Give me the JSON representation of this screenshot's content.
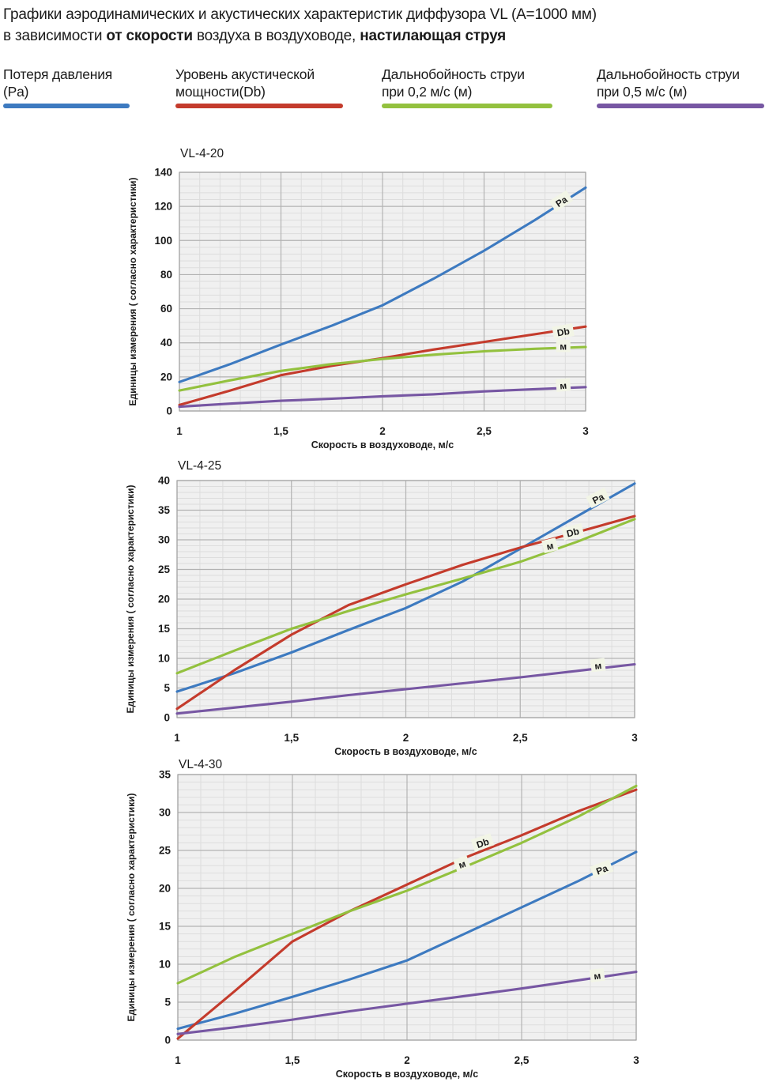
{
  "header": {
    "line1": "Графики аэродинамических и акустических характеристик  диффузора VL (А=1000 мм)",
    "line2": {
      "prefix": "в зависимости ",
      "bold1": "от скорости",
      "mid": " воздуха в воздуховоде, ",
      "bold2": "настилающая струя"
    }
  },
  "legend": {
    "items": [
      {
        "line1": "Потеря давления",
        "line2": "(Pa)",
        "color": "#3d7ac0"
      },
      {
        "line1": "Уровень акустической",
        "line2": "мощности(Db)",
        "color": "#c43b2c"
      },
      {
        "line1": "Дальнобойность струи",
        "line2": "при 0,2 м/с (м)",
        "color": "#93c13e"
      },
      {
        "line1": "Дальнобойность струи",
        "line2": "при 0,5 м/с (м)",
        "color": "#7757a3"
      }
    ]
  },
  "chart_data": [
    {
      "type": "line",
      "title": "VL-4-20",
      "xlabel": "Скорость в воздуховоде, м/с",
      "ylabel": "Единицы измерения ( согласно характеристики)",
      "xlim": [
        1,
        3
      ],
      "ylim": [
        0,
        140
      ],
      "x_major": 0.5,
      "x_minor": 0.1,
      "y_major": 20,
      "y_minor": 4,
      "xticks": [
        "1",
        "1,5",
        "2",
        "2,5",
        "3"
      ],
      "yticks": [
        0,
        20,
        40,
        60,
        80,
        100,
        120,
        140
      ],
      "x": [
        1,
        1.25,
        1.5,
        1.75,
        2,
        2.25,
        2.5,
        2.75,
        3
      ],
      "series": [
        {
          "key": "pa",
          "name": "Потеря давления (Pa)",
          "color": "#3d7ac0",
          "values": [
            17,
            27.5,
            39,
            50,
            62,
            77.5,
            94,
            112,
            131
          ],
          "label": {
            "text": "Pa",
            "x": 2.88,
            "y": 123,
            "angle": -33
          }
        },
        {
          "key": "db",
          "name": "Уровень акустической мощности(Db)",
          "color": "#c43b2c",
          "values": [
            3.5,
            12,
            21,
            26.5,
            31,
            36,
            40.5,
            45,
            49.5
          ],
          "label": {
            "text": "Db",
            "x": 2.89,
            "y": 46.5,
            "angle": -10
          }
        },
        {
          "key": "m02",
          "name": "Дальнобойность струи при 0,2 м/с (м)",
          "color": "#93c13e",
          "values": [
            12,
            18,
            23.5,
            27.5,
            30.5,
            33,
            35,
            36.5,
            37.5
          ],
          "label": {
            "text": "м",
            "x": 2.89,
            "y": 38,
            "angle": 0
          }
        },
        {
          "key": "m05",
          "name": "Дальнобойность струи при 0,5 м/с (м)",
          "color": "#7757a3",
          "values": [
            2.5,
            4.3,
            6,
            7.2,
            8.6,
            9.8,
            11.5,
            12.8,
            14
          ],
          "label": {
            "text": "м",
            "x": 2.89,
            "y": 15,
            "angle": -5
          }
        }
      ]
    },
    {
      "type": "line",
      "title": "VL-4-25",
      "xlabel": "Скорость в воздуховоде, м/с",
      "ylabel": "Единицы измерения ( согласно характеристики)",
      "xlim": [
        1,
        3
      ],
      "ylim": [
        0,
        40
      ],
      "x_major": 0.5,
      "x_minor": 0.1,
      "y_major": 5,
      "y_minor": 1,
      "xticks": [
        "1",
        "1,5",
        "2",
        "2,5",
        "3"
      ],
      "yticks": [
        0,
        5,
        10,
        15,
        20,
        25,
        30,
        35,
        40
      ],
      "x": [
        1,
        1.25,
        1.5,
        1.75,
        2,
        2.25,
        2.5,
        2.75,
        3
      ],
      "series": [
        {
          "key": "pa",
          "name": "Потеря давления (Pa)",
          "color": "#3d7ac0",
          "values": [
            4.4,
            7.5,
            11,
            14.8,
            18.5,
            23,
            28.5,
            34,
            39.5
          ],
          "label": {
            "text": "Pa",
            "x": 2.84,
            "y": 37,
            "angle": -27
          }
        },
        {
          "key": "db",
          "name": "Уровень акустической мощности(Db)",
          "color": "#c43b2c",
          "values": [
            1.5,
            8,
            14,
            19,
            22.5,
            25.8,
            28.7,
            31.3,
            34
          ],
          "label": {
            "text": "Db",
            "x": 2.73,
            "y": 31.3,
            "angle": -14
          }
        },
        {
          "key": "m02",
          "name": "Дальнобойность струи при 0,2 м/с (м)",
          "color": "#93c13e",
          "values": [
            7.5,
            11.3,
            15,
            18,
            20.8,
            23.5,
            26.3,
            29.7,
            33.5
          ],
          "label": {
            "text": "м",
            "x": 2.63,
            "y": 29,
            "angle": -14
          }
        },
        {
          "key": "m05",
          "name": "Дальнобойность струи при 0,5 м/с (м)",
          "color": "#7757a3",
          "values": [
            0.7,
            1.7,
            2.7,
            3.8,
            4.8,
            5.8,
            6.8,
            7.9,
            9
          ],
          "label": {
            "text": "м",
            "x": 2.84,
            "y": 8.8,
            "angle": -7
          }
        }
      ]
    },
    {
      "type": "line",
      "title": "VL-4-30",
      "xlabel": "Скорость в воздуховоде, м/с",
      "ylabel": "Единицы измерения ( согласно характеристики)",
      "xlim": [
        1,
        3
      ],
      "ylim": [
        0,
        35
      ],
      "x_major": 0.5,
      "x_minor": 0.1,
      "y_major": 5,
      "y_minor": 1,
      "xticks": [
        "1",
        "1,5",
        "2",
        "2,5",
        "3"
      ],
      "yticks": [
        0,
        5,
        10,
        15,
        20,
        25,
        30,
        35
      ],
      "x": [
        1,
        1.25,
        1.5,
        1.75,
        2,
        2.25,
        2.5,
        2.75,
        3
      ],
      "series": [
        {
          "key": "pa",
          "name": "Потеря давления (Pa)",
          "color": "#3d7ac0",
          "values": [
            1.5,
            3.5,
            5.7,
            8,
            10.5,
            14,
            17.5,
            21,
            24.8
          ],
          "label": {
            "text": "Pa",
            "x": 2.85,
            "y": 22.5,
            "angle": -21
          }
        },
        {
          "key": "db",
          "name": "Уровень акустической мощности(Db)",
          "color": "#c43b2c",
          "values": [
            0.2,
            6.5,
            13,
            17,
            20.5,
            24,
            27,
            30.2,
            33
          ],
          "label": {
            "text": "Db",
            "x": 2.33,
            "y": 26,
            "angle": -19
          }
        },
        {
          "key": "m02",
          "name": "Дальнобойность струи при 0,2 м/с (м)",
          "color": "#93c13e",
          "values": [
            7.5,
            11,
            14,
            17,
            19.7,
            22.8,
            26,
            29.5,
            33.5
          ],
          "label": {
            "text": "м",
            "x": 2.24,
            "y": 23.2,
            "angle": -19
          }
        },
        {
          "key": "m05",
          "name": "Дальнобойность струи при 0,5 м/с (м)",
          "color": "#7757a3",
          "values": [
            0.8,
            1.7,
            2.7,
            3.8,
            4.8,
            5.8,
            6.8,
            7.9,
            9
          ],
          "label": {
            "text": "м",
            "x": 2.83,
            "y": 8.5,
            "angle": -7
          }
        }
      ]
    }
  ]
}
